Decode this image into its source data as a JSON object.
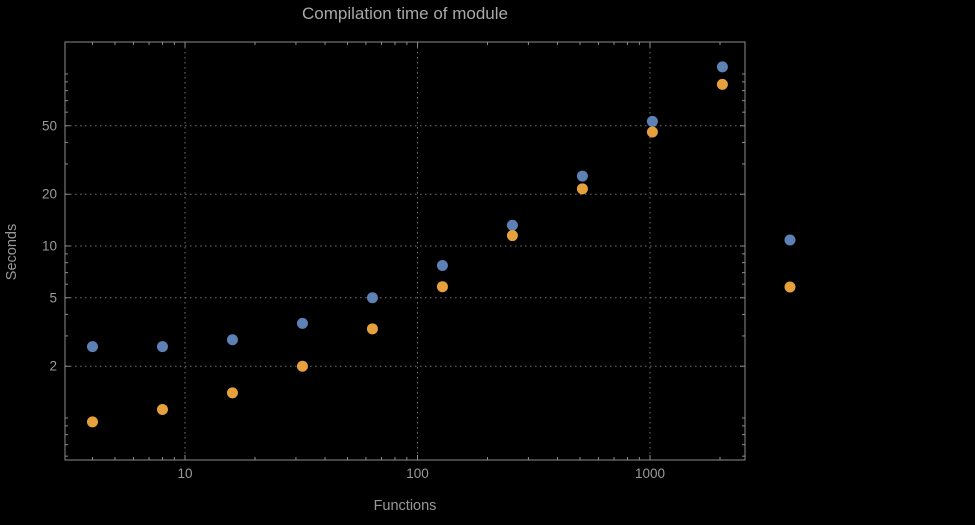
{
  "chart_data": {
    "type": "scatter",
    "title": "Compilation time of module",
    "xlabel": "Functions",
    "ylabel": "Seconds",
    "x_scale": "log",
    "y_scale": "log",
    "grid": true,
    "x": [
      4,
      8,
      16,
      32,
      64,
      128,
      256,
      512,
      1024,
      2048
    ],
    "series": [
      {
        "name": "series-1-blue",
        "color": "#5e81b5",
        "values": [
          2.6,
          2.6,
          2.85,
          3.55,
          5.0,
          7.7,
          13.2,
          25.5,
          53,
          110
        ]
      },
      {
        "name": "series-2-orange",
        "color": "#e6a13c",
        "values": [
          0.95,
          1.12,
          1.4,
          2.0,
          3.3,
          5.8,
          11.5,
          21.5,
          46,
          87
        ]
      }
    ],
    "x_ticks": [
      10,
      100,
      1000
    ],
    "x_tick_labels": [
      "10",
      "100",
      "1000"
    ],
    "y_ticks": [
      2,
      5,
      10,
      20,
      50
    ],
    "y_tick_labels": [
      "2",
      "5",
      "10",
      "20",
      "50"
    ],
    "xlim": [
      3.05,
      2560
    ],
    "ylim": [
      0.57,
      153
    ],
    "legend_position": "right-outside",
    "legend_markers": [
      {
        "name": "legend-marker-series-1",
        "color": "#5e81b5"
      },
      {
        "name": "legend-marker-series-2",
        "color": "#e6a13c"
      }
    ]
  },
  "colors": {
    "background": "#000000",
    "frame": "#8c8c8c",
    "grid": "#747474",
    "tick_text": "#9a9a9a",
    "title_text": "#a8a8a8"
  }
}
